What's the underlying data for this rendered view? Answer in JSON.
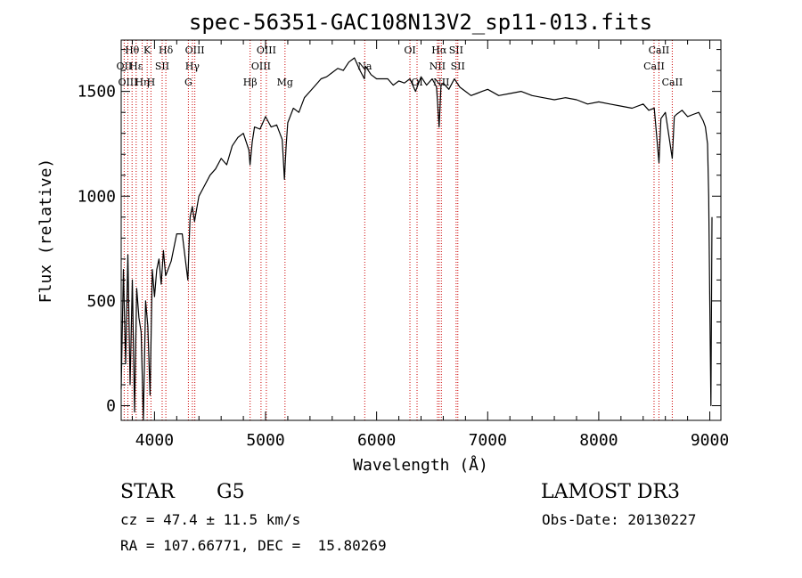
{
  "chart_data": {
    "type": "line",
    "title": "spec-56351-GAC108N13V2_sp11-013.fits",
    "xlabel": "Wavelength (Å)",
    "ylabel": "Flux (relative)",
    "xlim": [
      3700,
      9100
    ],
    "ylim": [
      -70,
      1745
    ],
    "xticks": [
      {
        "value": 4000,
        "label": "4000"
      },
      {
        "value": 5000,
        "label": "5000"
      },
      {
        "value": 6000,
        "label": "6000"
      },
      {
        "value": 7000,
        "label": "7000"
      },
      {
        "value": 8000,
        "label": "8000"
      },
      {
        "value": 9000,
        "label": "9000"
      }
    ],
    "yticks": [
      {
        "value": 0,
        "label": "0"
      },
      {
        "value": 500,
        "label": "500"
      },
      {
        "value": 1000,
        "label": "1000"
      },
      {
        "value": 1500,
        "label": "1500"
      }
    ],
    "series": [
      {
        "name": "flux",
        "x": [
          3700,
          3720,
          3740,
          3760,
          3780,
          3800,
          3820,
          3840,
          3860,
          3880,
          3900,
          3920,
          3940,
          3960,
          3980,
          4000,
          4020,
          4040,
          4060,
          4080,
          4100,
          4150,
          4200,
          4250,
          4300,
          4320,
          4340,
          4360,
          4400,
          4450,
          4500,
          4550,
          4600,
          4650,
          4700,
          4750,
          4800,
          4850,
          4860,
          4880,
          4900,
          4950,
          5000,
          5050,
          5100,
          5150,
          5170,
          5185,
          5200,
          5250,
          5300,
          5350,
          5400,
          5450,
          5500,
          5550,
          5600,
          5650,
          5700,
          5750,
          5800,
          5850,
          5890,
          5900,
          5950,
          6000,
          6050,
          6100,
          6150,
          6200,
          6250,
          6300,
          6350,
          6400,
          6450,
          6500,
          6540,
          6563,
          6580,
          6600,
          6650,
          6700,
          6750,
          6800,
          6850,
          6900,
          6950,
          7000,
          7100,
          7200,
          7300,
          7400,
          7500,
          7600,
          7700,
          7800,
          7900,
          8000,
          8100,
          8200,
          8300,
          8400,
          8450,
          8500,
          8542,
          8560,
          8600,
          8662,
          8680,
          8700,
          8750,
          8800,
          8850,
          8900,
          8940,
          8960,
          8980,
          8990,
          9000,
          9010,
          9020
        ],
        "y": [
          80,
          650,
          200,
          720,
          100,
          600,
          -30,
          560,
          420,
          350,
          -70,
          500,
          380,
          50,
          650,
          520,
          650,
          700,
          580,
          740,
          620,
          690,
          820,
          820,
          600,
          900,
          950,
          880,
          1000,
          1050,
          1100,
          1130,
          1180,
          1150,
          1240,
          1280,
          1300,
          1220,
          1150,
          1260,
          1330,
          1320,
          1380,
          1330,
          1340,
          1270,
          1080,
          1240,
          1350,
          1420,
          1400,
          1470,
          1500,
          1530,
          1560,
          1570,
          1590,
          1610,
          1600,
          1640,
          1660,
          1600,
          1560,
          1620,
          1580,
          1560,
          1560,
          1560,
          1530,
          1550,
          1540,
          1560,
          1500,
          1570,
          1530,
          1560,
          1520,
          1330,
          1530,
          1540,
          1510,
          1560,
          1520,
          1500,
          1480,
          1490,
          1500,
          1510,
          1480,
          1490,
          1500,
          1480,
          1470,
          1460,
          1470,
          1460,
          1440,
          1450,
          1440,
          1430,
          1420,
          1440,
          1410,
          1420,
          1160,
          1370,
          1400,
          1180,
          1380,
          1390,
          1410,
          1380,
          1390,
          1400,
          1360,
          1330,
          1250,
          1000,
          500,
          0,
          900
        ]
      }
    ],
    "line_markers": [
      {
        "label": "Hθ",
        "x": 3798,
        "row": 1
      },
      {
        "label": "OII",
        "x": 3727,
        "row": 2
      },
      {
        "label": "OIII",
        "x": 3760,
        "row": 3
      },
      {
        "label": "Hε",
        "x": 3835,
        "row": 2
      },
      {
        "label": "Hη",
        "x": 3889,
        "row": 3
      },
      {
        "label": "K",
        "x": 3934,
        "row": 1
      },
      {
        "label": "H",
        "x": 3968,
        "row": 3
      },
      {
        "label": "SII",
        "x": 4069,
        "row": 2
      },
      {
        "label": "Hδ",
        "x": 4102,
        "row": 1
      },
      {
        "label": "OIII",
        "x": 4363,
        "row": 1
      },
      {
        "label": "Hγ",
        "x": 4341,
        "row": 2
      },
      {
        "label": "G",
        "x": 4305,
        "row": 3
      },
      {
        "label": "Hβ",
        "x": 4861,
        "row": 3
      },
      {
        "label": "OIII",
        "x": 4959,
        "row": 2
      },
      {
        "label": "OIII",
        "x": 5007,
        "row": 1
      },
      {
        "label": "Mg",
        "x": 5175,
        "row": 3
      },
      {
        "label": "Na",
        "x": 5893,
        "row": 2
      },
      {
        "label": "OI",
        "x": 6300,
        "row": 1
      },
      {
        "label": "OI",
        "x": 6364,
        "row": 3
      },
      {
        "label": "NII",
        "x": 6548,
        "row": 2
      },
      {
        "label": "Hα",
        "x": 6563,
        "row": 1
      },
      {
        "label": "NII",
        "x": 6583,
        "row": 3
      },
      {
        "label": "SII",
        "x": 6716,
        "row": 1
      },
      {
        "label": "SII",
        "x": 6731,
        "row": 2
      },
      {
        "label": "CaII",
        "x": 8498,
        "row": 2
      },
      {
        "label": "CaII",
        "x": 8542,
        "row": 1
      },
      {
        "label": "CaII",
        "x": 8662,
        "row": 3
      }
    ]
  },
  "info": {
    "class": "STAR",
    "subclass": "G5",
    "survey": "LAMOST DR3",
    "cz": "cz = 47.4 ± 11.5 km/s",
    "obs_date": "Obs-Date: 20130227",
    "radec": "RA = 107.66771, DEC =  15.80269"
  },
  "colors": {
    "axis": "#000000",
    "line": "#000000",
    "marker": "#cc0000"
  }
}
